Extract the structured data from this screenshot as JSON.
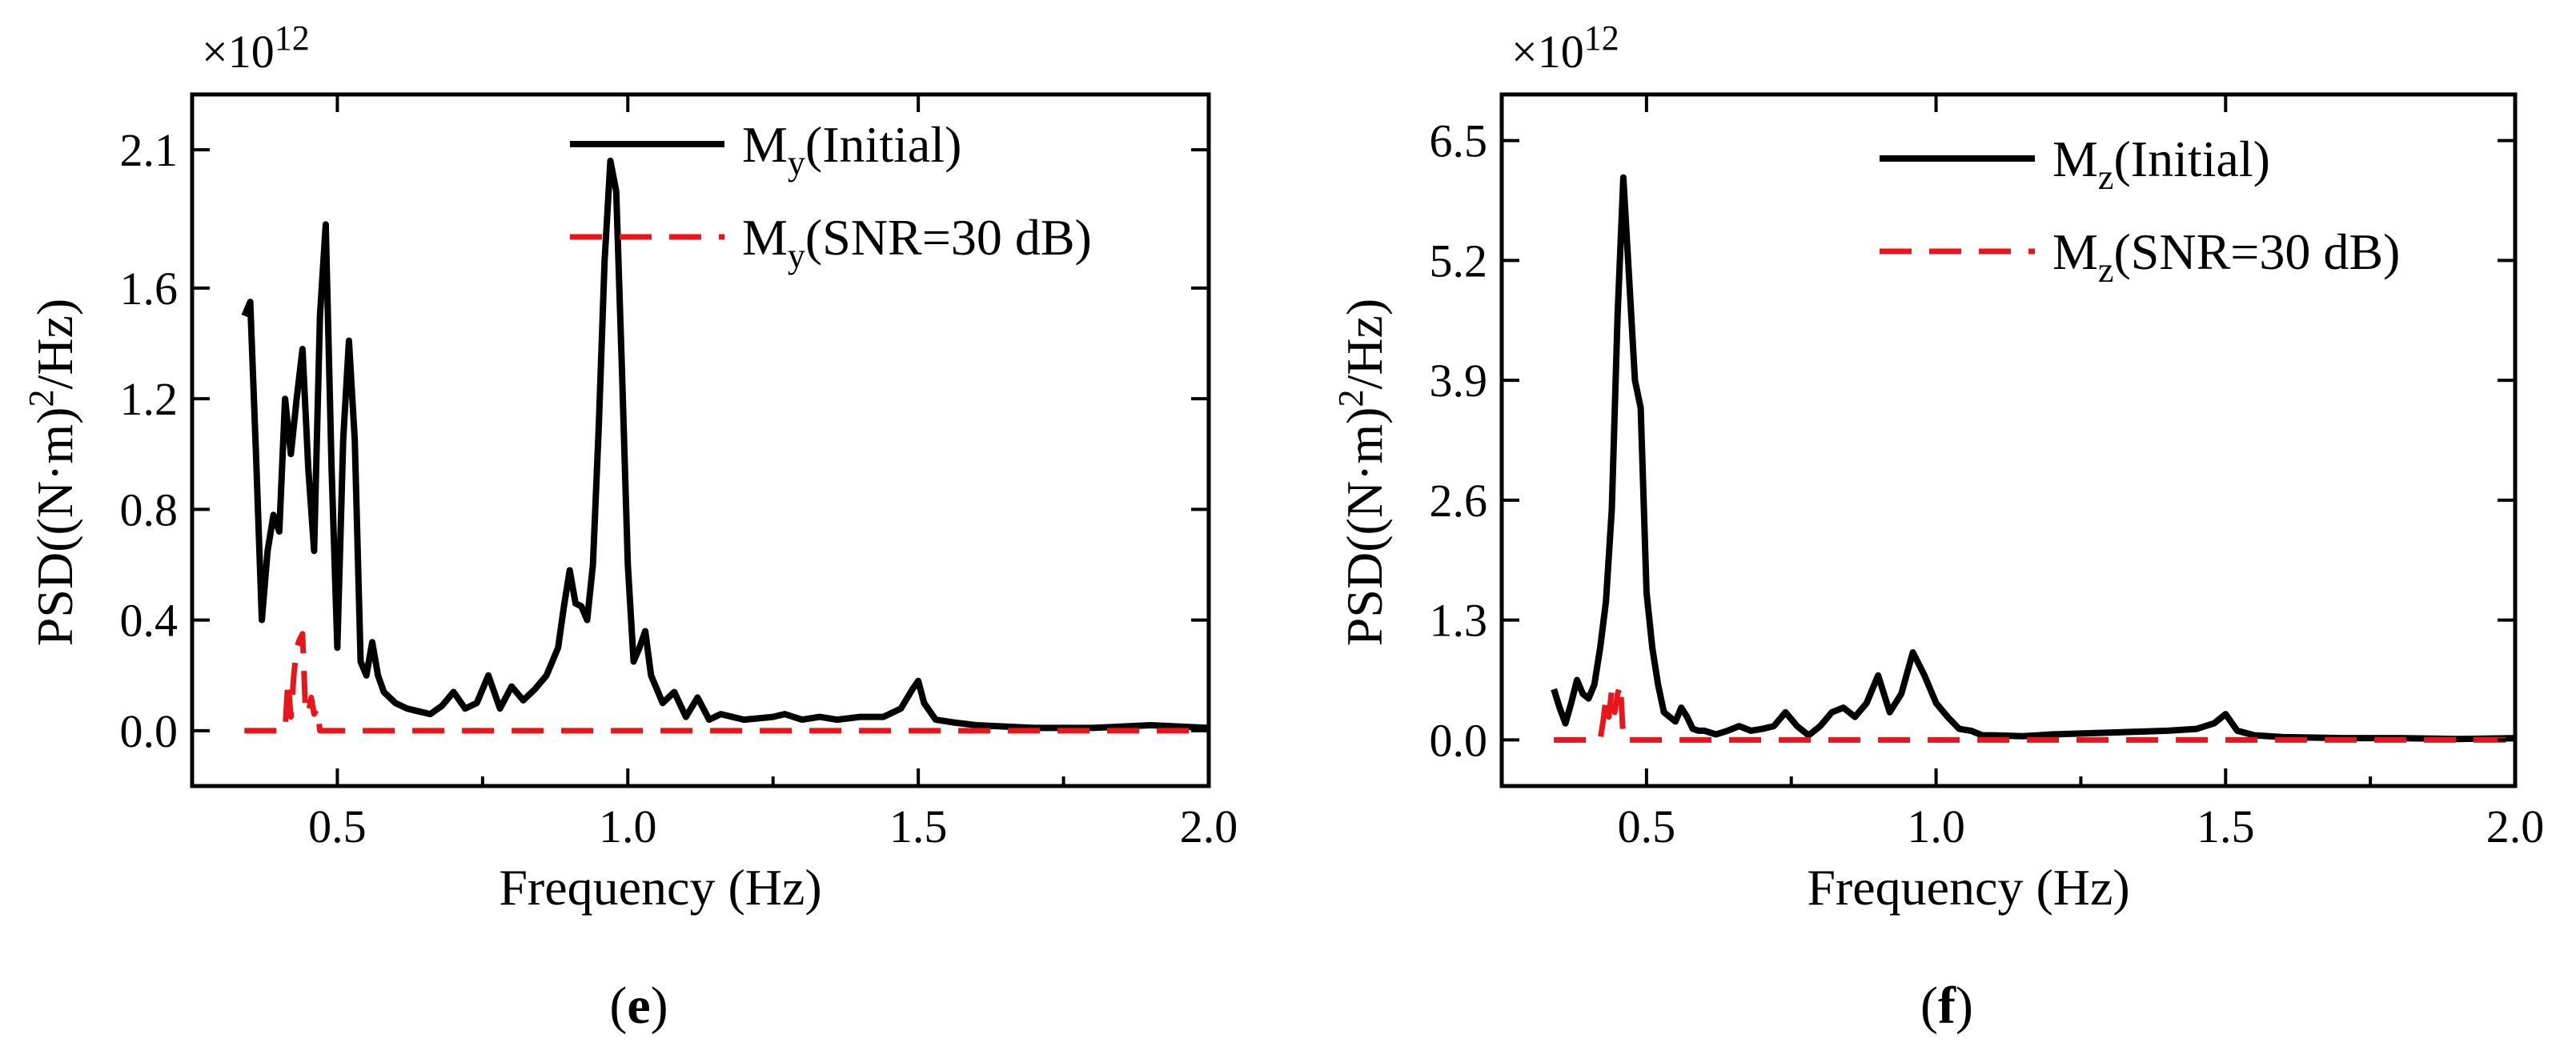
{
  "chart_data": [
    {
      "type": "line",
      "panel_label": "(e)",
      "multiplier": "×10",
      "multiplier_exp": "12",
      "xlabel": "Frequency (Hz)",
      "ylabel_parts": [
        "PSD((N·m)",
        "2",
        "/Hz)"
      ],
      "xlim": [
        0.25,
        2.0
      ],
      "ylim": [
        -0.2,
        2.3
      ],
      "xticks": [
        0.5,
        1.0,
        1.5,
        2.0
      ],
      "xtick_labels": [
        "0.5",
        "1.0",
        "1.5",
        "2.0"
      ],
      "yticks": [
        0.0,
        0.4,
        0.8,
        1.2,
        1.6,
        2.1
      ],
      "ytick_labels": [
        "0.0",
        "0.4",
        "0.8",
        "1.2",
        "1.6",
        "2.1"
      ],
      "legend_position": "top-right",
      "series": [
        {
          "name": "My(Initial)",
          "label_main": "M",
          "label_sub": "y",
          "label_rest": "(Initial)",
          "color": "#000000",
          "style": "solid",
          "x": [
            0.34,
            0.35,
            0.36,
            0.37,
            0.38,
            0.39,
            0.4,
            0.41,
            0.42,
            0.43,
            0.44,
            0.45,
            0.46,
            0.47,
            0.48,
            0.49,
            0.5,
            0.51,
            0.52,
            0.53,
            0.54,
            0.55,
            0.56,
            0.57,
            0.58,
            0.6,
            0.62,
            0.64,
            0.66,
            0.68,
            0.7,
            0.72,
            0.74,
            0.76,
            0.78,
            0.8,
            0.82,
            0.84,
            0.86,
            0.88,
            0.89,
            0.9,
            0.91,
            0.92,
            0.93,
            0.94,
            0.95,
            0.96,
            0.97,
            0.98,
            0.99,
            1.0,
            1.01,
            1.02,
            1.03,
            1.04,
            1.05,
            1.06,
            1.08,
            1.1,
            1.12,
            1.14,
            1.16,
            1.2,
            1.25,
            1.27,
            1.3,
            1.33,
            1.36,
            1.4,
            1.44,
            1.47,
            1.49,
            1.5,
            1.51,
            1.53,
            1.56,
            1.6,
            1.7,
            1.8,
            1.9,
            2.0
          ],
          "values": [
            1.5,
            1.55,
            1.0,
            0.4,
            0.65,
            0.78,
            0.72,
            1.2,
            1.0,
            1.2,
            1.38,
            0.95,
            0.65,
            1.5,
            1.83,
            0.95,
            0.3,
            1.05,
            1.41,
            1.05,
            0.25,
            0.2,
            0.32,
            0.2,
            0.14,
            0.1,
            0.08,
            0.07,
            0.06,
            0.09,
            0.14,
            0.08,
            0.1,
            0.2,
            0.08,
            0.16,
            0.11,
            0.15,
            0.2,
            0.3,
            0.45,
            0.58,
            0.46,
            0.45,
            0.4,
            0.6,
            1.1,
            1.7,
            2.06,
            1.95,
            1.3,
            0.6,
            0.25,
            0.3,
            0.36,
            0.2,
            0.15,
            0.1,
            0.14,
            0.05,
            0.12,
            0.04,
            0.06,
            0.04,
            0.05,
            0.06,
            0.04,
            0.05,
            0.04,
            0.05,
            0.05,
            0.08,
            0.15,
            0.18,
            0.1,
            0.04,
            0.03,
            0.02,
            0.01,
            0.01,
            0.02,
            0.01
          ]
        },
        {
          "name": "My(SNR=30 dB)",
          "label_main": "M",
          "label_sub": "y",
          "label_rest": "(SNR=30 dB)",
          "color": "#e8161b",
          "style": "dashed",
          "x": [
            0.34,
            0.41,
            0.415,
            0.42,
            0.425,
            0.43,
            0.435,
            0.44,
            0.445,
            0.45,
            0.455,
            0.46,
            0.465,
            0.47,
            0.48,
            0.5,
            0.6,
            0.8,
            1.0,
            1.2,
            1.4,
            1.6,
            1.8,
            2.0
          ],
          "values": [
            0.0,
            0.0,
            0.18,
            0.05,
            0.2,
            0.3,
            0.33,
            0.35,
            0.08,
            0.06,
            0.12,
            0.06,
            0.08,
            0.0,
            0.0,
            0.0,
            0.0,
            0.0,
            0.0,
            0.0,
            0.0,
            0.0,
            0.0,
            0.0
          ]
        }
      ]
    },
    {
      "type": "line",
      "panel_label": "(f)",
      "multiplier": "×10",
      "multiplier_exp": "12",
      "xlabel": "Frequency (Hz)",
      "ylabel_parts": [
        "PSD((N·m)",
        "2",
        "/Hz)"
      ],
      "xlim": [
        0.25,
        2.0
      ],
      "ylim": [
        -0.5,
        7.0
      ],
      "xticks": [
        0.5,
        1.0,
        1.5,
        2.0
      ],
      "xtick_labels": [
        "0.5",
        "1.0",
        "1.5",
        "2.0"
      ],
      "yticks": [
        0.0,
        1.3,
        2.6,
        3.9,
        5.2,
        6.5
      ],
      "ytick_labels": [
        "0.0",
        "1.3",
        "2.6",
        "3.9",
        "5.2",
        "6.5"
      ],
      "legend_position": "top-right",
      "series": [
        {
          "name": "Mz(Initial)",
          "label_main": "M",
          "label_sub": "z",
          "label_rest": "(Initial)",
          "color": "#000000",
          "style": "solid",
          "x": [
            0.34,
            0.35,
            0.36,
            0.37,
            0.38,
            0.39,
            0.4,
            0.41,
            0.42,
            0.43,
            0.44,
            0.45,
            0.46,
            0.47,
            0.48,
            0.49,
            0.5,
            0.51,
            0.52,
            0.53,
            0.54,
            0.55,
            0.56,
            0.57,
            0.58,
            0.59,
            0.6,
            0.62,
            0.64,
            0.66,
            0.68,
            0.7,
            0.72,
            0.74,
            0.76,
            0.78,
            0.8,
            0.82,
            0.84,
            0.86,
            0.88,
            0.9,
            0.92,
            0.94,
            0.96,
            0.98,
            1.0,
            1.02,
            1.04,
            1.06,
            1.08,
            1.1,
            1.15,
            1.2,
            1.3,
            1.4,
            1.45,
            1.48,
            1.5,
            1.52,
            1.55,
            1.6,
            1.7,
            1.8,
            1.9,
            2.0
          ],
          "values": [
            0.55,
            0.35,
            0.18,
            0.4,
            0.65,
            0.5,
            0.45,
            0.6,
            1.0,
            1.5,
            2.5,
            4.6,
            6.1,
            5.0,
            3.9,
            3.6,
            1.6,
            1.0,
            0.6,
            0.3,
            0.25,
            0.2,
            0.35,
            0.25,
            0.12,
            0.1,
            0.1,
            0.06,
            0.1,
            0.15,
            0.1,
            0.12,
            0.15,
            0.3,
            0.15,
            0.05,
            0.15,
            0.3,
            0.35,
            0.25,
            0.4,
            0.7,
            0.3,
            0.5,
            0.95,
            0.7,
            0.4,
            0.25,
            0.12,
            0.1,
            0.05,
            0.05,
            0.04,
            0.06,
            0.08,
            0.1,
            0.12,
            0.18,
            0.28,
            0.1,
            0.05,
            0.03,
            0.02,
            0.02,
            0.01,
            0.02
          ]
        },
        {
          "name": "Mz(SNR=30 dB)",
          "label_main": "M",
          "label_sub": "z",
          "label_rest": "(SNR=30 dB)",
          "color": "#e8161b",
          "style": "dashed",
          "x": [
            0.34,
            0.42,
            0.425,
            0.43,
            0.435,
            0.44,
            0.445,
            0.45,
            0.455,
            0.46,
            0.47,
            0.5,
            0.6,
            0.8,
            1.0,
            1.2,
            1.4,
            1.6,
            1.8,
            2.0
          ],
          "values": [
            0.0,
            0.0,
            0.2,
            0.45,
            0.25,
            0.55,
            0.3,
            0.5,
            0.6,
            0.0,
            0.0,
            0.0,
            0.0,
            0.0,
            0.0,
            0.0,
            0.0,
            0.0,
            0.0,
            0.0
          ]
        }
      ]
    }
  ]
}
